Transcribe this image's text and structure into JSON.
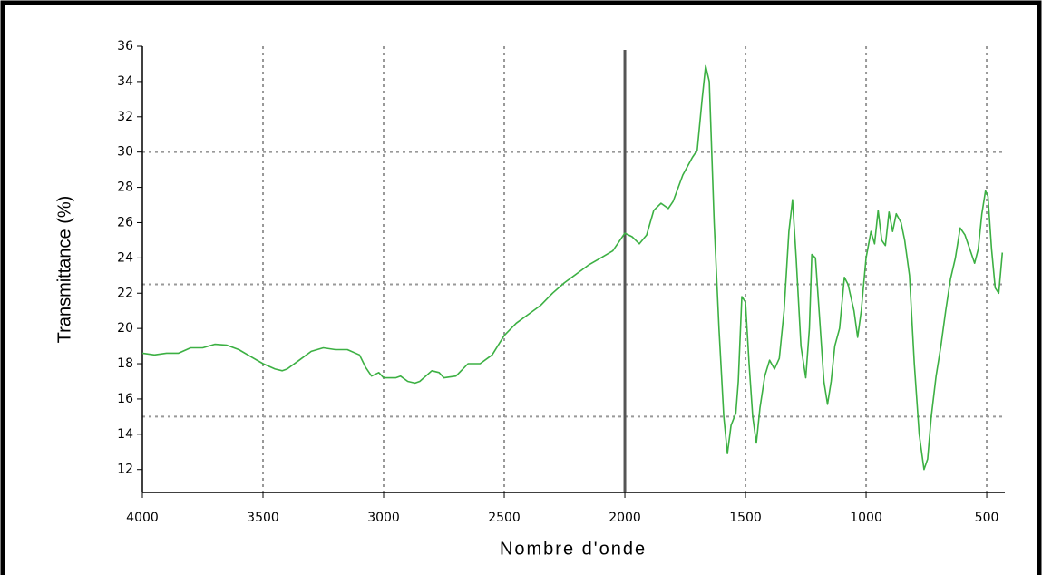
{
  "chart_data": {
    "type": "line",
    "xlabel": "Nombre d'onde",
    "ylabel": "Transmittance (%)",
    "xlim": [
      4000,
      425
    ],
    "ylim": [
      10.7,
      36
    ],
    "xticks": [
      4000,
      3500,
      3000,
      2500,
      2000,
      1500,
      1000,
      500
    ],
    "yticks": [
      12,
      14,
      16,
      18,
      20,
      22,
      24,
      26,
      28,
      30,
      32,
      34,
      36
    ],
    "xgrid": [
      3500,
      3000,
      2500,
      1500,
      1000,
      500
    ],
    "ygrid": [
      15,
      22.5,
      30
    ],
    "vline": 2000,
    "color": "#3cb043",
    "x": [
      4000,
      3950,
      3900,
      3850,
      3800,
      3750,
      3700,
      3650,
      3600,
      3550,
      3500,
      3450,
      3420,
      3400,
      3350,
      3300,
      3250,
      3200,
      3150,
      3100,
      3075,
      3050,
      3020,
      3000,
      2950,
      2930,
      2900,
      2870,
      2850,
      2800,
      2770,
      2750,
      2700,
      2650,
      2600,
      2550,
      2500,
      2450,
      2400,
      2350,
      2300,
      2250,
      2200,
      2150,
      2100,
      2050,
      2000,
      1970,
      1940,
      1910,
      1880,
      1850,
      1820,
      1800,
      1760,
      1720,
      1700,
      1680,
      1665,
      1650,
      1630,
      1610,
      1590,
      1575,
      1560,
      1540,
      1530,
      1515,
      1500,
      1485,
      1470,
      1455,
      1440,
      1420,
      1400,
      1380,
      1360,
      1340,
      1320,
      1305,
      1290,
      1270,
      1250,
      1235,
      1225,
      1210,
      1195,
      1175,
      1160,
      1145,
      1130,
      1110,
      1090,
      1075,
      1050,
      1035,
      1020,
      1000,
      980,
      965,
      950,
      935,
      920,
      905,
      890,
      875,
      855,
      840,
      820,
      800,
      780,
      760,
      745,
      730,
      710,
      690,
      670,
      650,
      630,
      610,
      590,
      570,
      550,
      535,
      520,
      505,
      495,
      480,
      465,
      450,
      435
    ],
    "values": [
      18.6,
      18.5,
      18.6,
      18.6,
      18.9,
      18.9,
      19.1,
      19.05,
      18.8,
      18.4,
      18.0,
      17.7,
      17.6,
      17.7,
      18.2,
      18.7,
      18.9,
      18.8,
      18.8,
      18.5,
      17.8,
      17.3,
      17.5,
      17.2,
      17.2,
      17.3,
      17.0,
      16.9,
      17.0,
      17.6,
      17.5,
      17.2,
      17.3,
      18.0,
      18.0,
      18.5,
      19.6,
      20.3,
      20.8,
      21.3,
      22.0,
      22.6,
      23.1,
      23.6,
      24.0,
      24.4,
      25.4,
      25.2,
      24.8,
      25.3,
      26.7,
      27.1,
      26.8,
      27.2,
      28.7,
      29.7,
      30.1,
      33.0,
      34.9,
      34.0,
      26,
      20,
      15,
      12.9,
      14.5,
      15.2,
      17,
      21.8,
      21.5,
      18,
      15,
      13.5,
      15.5,
      17.3,
      18.2,
      17.7,
      18.3,
      21,
      25.5,
      27.3,
      24,
      19,
      17.2,
      20,
      24.2,
      24,
      21,
      17,
      15.7,
      17,
      19,
      20,
      22.9,
      22.5,
      21,
      19.5,
      21,
      24,
      25.5,
      24.8,
      26.7,
      25,
      24.7,
      26.6,
      25.5,
      26.5,
      26,
      25,
      23,
      18,
      14,
      12,
      12.6,
      15,
      17.3,
      19,
      21,
      22.8,
      24,
      25.7,
      25.3,
      24.5,
      23.7,
      24.5,
      26.5,
      27.8,
      27.5,
      24.5,
      22.3,
      22,
      24.3
    ]
  }
}
